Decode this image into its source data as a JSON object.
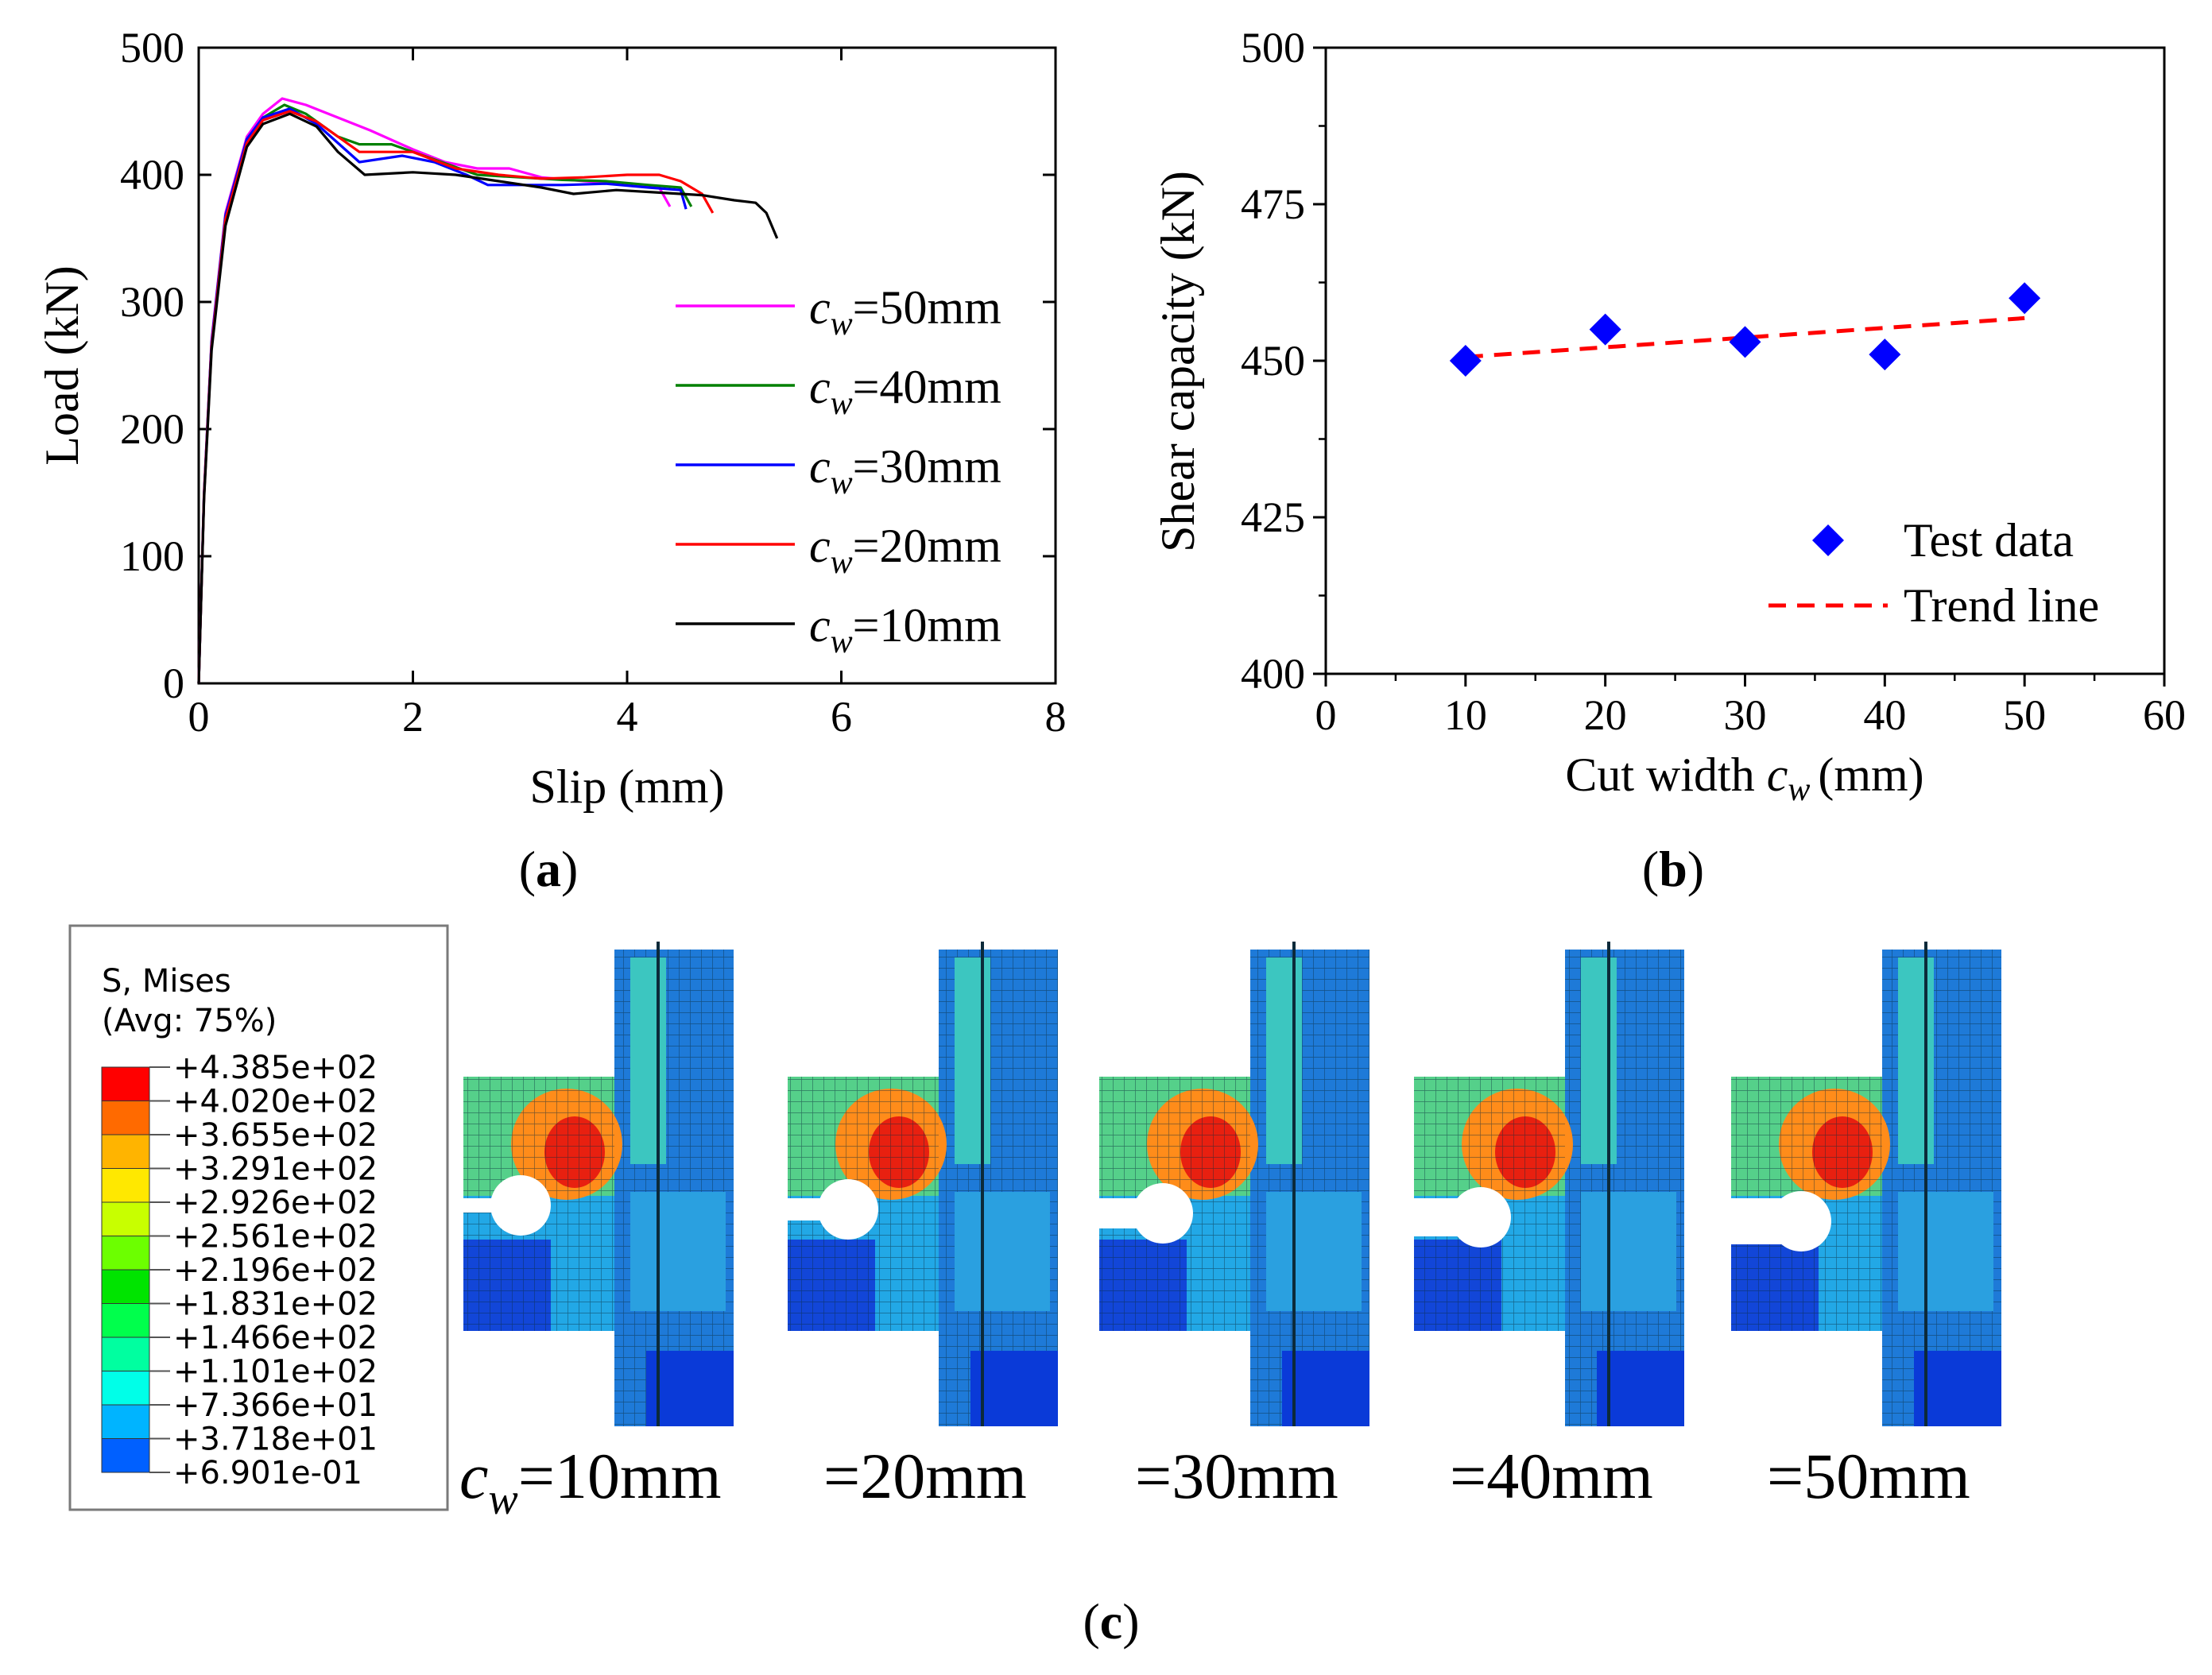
{
  "chart_data": [
    {
      "id": "a",
      "type": "line",
      "panel_label": "a",
      "xlabel": "Slip (mm)",
      "ylabel": "Load (kN)",
      "xlim": [
        0,
        8
      ],
      "ylim": [
        0,
        500
      ],
      "xticks": [
        "0",
        "2",
        "4",
        "6",
        "8"
      ],
      "yticks": [
        "0",
        "100",
        "200",
        "300",
        "400",
        "500"
      ],
      "legend_position": "lower-right",
      "series": [
        {
          "name": "50mm",
          "var": "c",
          "sub": "w",
          "color": "#ff00ff",
          "points": [
            [
              0,
              0
            ],
            [
              0.05,
              150
            ],
            [
              0.12,
              270
            ],
            [
              0.25,
              370
            ],
            [
              0.45,
              430
            ],
            [
              0.6,
              448
            ],
            [
              0.78,
              460
            ],
            [
              1.0,
              455
            ],
            [
              1.3,
              445
            ],
            [
              1.6,
              435
            ],
            [
              2.0,
              420
            ],
            [
              2.3,
              410
            ],
            [
              2.6,
              405
            ],
            [
              2.9,
              405
            ],
            [
              3.2,
              398
            ],
            [
              3.6,
              395
            ],
            [
              4.0,
              393
            ],
            [
              4.3,
              390
            ],
            [
              4.4,
              375
            ]
          ]
        },
        {
          "name": "40mm",
          "var": "c",
          "sub": "w",
          "color": "#008000",
          "points": [
            [
              0,
              0
            ],
            [
              0.05,
              148
            ],
            [
              0.12,
              268
            ],
            [
              0.25,
              368
            ],
            [
              0.45,
              428
            ],
            [
              0.6,
              445
            ],
            [
              0.8,
              455
            ],
            [
              1.0,
              448
            ],
            [
              1.3,
              430
            ],
            [
              1.5,
              424
            ],
            [
              1.8,
              424
            ],
            [
              2.2,
              412
            ],
            [
              2.6,
              400
            ],
            [
              3.0,
              398
            ],
            [
              3.4,
              396
            ],
            [
              3.8,
              395
            ],
            [
              4.2,
              392
            ],
            [
              4.5,
              390
            ],
            [
              4.6,
              375
            ]
          ]
        },
        {
          "name": "30mm",
          "var": "c",
          "sub": "w",
          "color": "#0000ff",
          "points": [
            [
              0,
              0
            ],
            [
              0.05,
              148
            ],
            [
              0.12,
              268
            ],
            [
              0.25,
              368
            ],
            [
              0.45,
              428
            ],
            [
              0.6,
              445
            ],
            [
              0.85,
              452
            ],
            [
              1.1,
              440
            ],
            [
              1.3,
              425
            ],
            [
              1.5,
              410
            ],
            [
              1.9,
              415
            ],
            [
              2.2,
              410
            ],
            [
              2.5,
              400
            ],
            [
              2.7,
              392
            ],
            [
              3.0,
              392
            ],
            [
              3.4,
              392
            ],
            [
              3.8,
              393
            ],
            [
              4.2,
              390
            ],
            [
              4.5,
              388
            ],
            [
              4.55,
              373
            ]
          ]
        },
        {
          "name": "20mm",
          "var": "c",
          "sub": "w",
          "color": "#ff0000",
          "points": [
            [
              0,
              0
            ],
            [
              0.05,
              147
            ],
            [
              0.12,
              265
            ],
            [
              0.25,
              365
            ],
            [
              0.45,
              425
            ],
            [
              0.6,
              443
            ],
            [
              0.85,
              450
            ],
            [
              1.1,
              442
            ],
            [
              1.3,
              430
            ],
            [
              1.5,
              418
            ],
            [
              2.0,
              418
            ],
            [
              2.4,
              405
            ],
            [
              2.8,
              400
            ],
            [
              3.2,
              397
            ],
            [
              3.6,
              398
            ],
            [
              4.0,
              400
            ],
            [
              4.3,
              400
            ],
            [
              4.5,
              395
            ],
            [
              4.7,
              385
            ],
            [
              4.8,
              370
            ]
          ]
        },
        {
          "name": "10mm",
          "var": "c",
          "sub": "w",
          "color": "#000000",
          "points": [
            [
              0,
              0
            ],
            [
              0.05,
              145
            ],
            [
              0.12,
              262
            ],
            [
              0.25,
              360
            ],
            [
              0.45,
              422
            ],
            [
              0.6,
              440
            ],
            [
              0.85,
              448
            ],
            [
              1.1,
              438
            ],
            [
              1.3,
              418
            ],
            [
              1.55,
              400
            ],
            [
              2.0,
              402
            ],
            [
              2.4,
              400
            ],
            [
              2.8,
              395
            ],
            [
              3.2,
              390
            ],
            [
              3.5,
              385
            ],
            [
              3.9,
              388
            ],
            [
              4.3,
              386
            ],
            [
              4.7,
              384
            ],
            [
              5.0,
              380
            ],
            [
              5.2,
              378
            ],
            [
              5.3,
              370
            ],
            [
              5.4,
              350
            ]
          ]
        }
      ]
    },
    {
      "id": "b",
      "type": "scatter",
      "panel_label": "b",
      "xlabel": "Cut width",
      "xlabel_var": "c",
      "xlabel_sub": "w",
      "xlabel_unit": "(mm)",
      "ylabel": "Shear capacity (kN)",
      "xlim": [
        0,
        60
      ],
      "ylim": [
        400,
        500
      ],
      "xticks": [
        "0",
        "10",
        "20",
        "30",
        "40",
        "50",
        "60"
      ],
      "yticks": [
        "400",
        "425",
        "450",
        "475",
        "500"
      ],
      "legend_position": "lower-right",
      "series": [
        {
          "name": "Test data",
          "kind": "markers",
          "color": "#0000ff",
          "x": [
            10,
            20,
            30,
            40,
            50
          ],
          "y": [
            450,
            455,
            453,
            451,
            460
          ]
        },
        {
          "name": "Trend line",
          "kind": "dashed-line",
          "color": "#ff0000",
          "x": [
            10,
            50
          ],
          "y": [
            450.6,
            456.8
          ]
        }
      ]
    }
  ],
  "panel_c": {
    "panel_label": "c",
    "colorbar": {
      "title_line1": "S, Mises",
      "title_line2": "(Avg: 75%)",
      "labels": [
        "+4.385e+02",
        "+4.020e+02",
        "+3.655e+02",
        "+3.291e+02",
        "+2.926e+02",
        "+2.561e+02",
        "+2.196e+02",
        "+1.831e+02",
        "+1.466e+02",
        "+1.101e+02",
        "+7.366e+01",
        "+3.718e+01",
        "+6.901e-01"
      ],
      "colors": [
        "#ff0000",
        "#ff6a00",
        "#ffb400",
        "#ffe800",
        "#c8ff00",
        "#6cff00",
        "#00e400",
        "#00ff4c",
        "#00ffa0",
        "#00ffe8",
        "#00b4ff",
        "#0060ff",
        "#0000ff"
      ]
    },
    "models": [
      {
        "label": "=10mm",
        "prefix_var": "c",
        "prefix_sub": "w"
      },
      {
        "label": "=20mm"
      },
      {
        "label": "=30mm"
      },
      {
        "label": "=40mm"
      },
      {
        "label": "=50mm"
      }
    ]
  }
}
